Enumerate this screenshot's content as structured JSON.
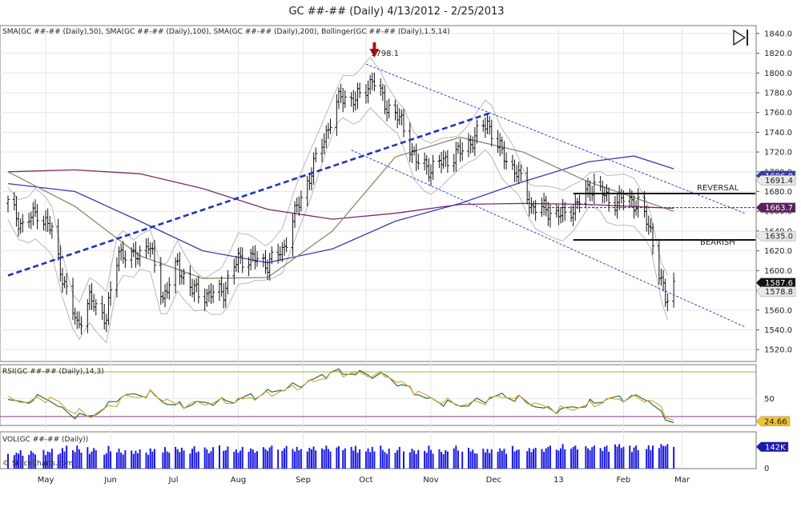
{
  "title": "GC ##-## (Daily)  4/13/2012 - 2/25/2013",
  "watermark": "© StockCharts.com",
  "chart_data": [
    {
      "type": "ohlc",
      "panel": "price",
      "legend_text": "SMA(GC ##-## (Daily),50), SMA(GC ##-## (Daily),100), SMA(GC ##-## (Daily),200), Bollinger(GC ##-## (Daily),1.5,14)",
      "x_months": [
        "May",
        "Jun",
        "Jul",
        "Aug",
        "Sep",
        "Oct",
        "Nov",
        "Dec",
        "13",
        "Feb",
        "Mar"
      ],
      "y_ticks": [
        1520,
        1540,
        1560,
        1580,
        1600,
        1620,
        1640,
        1660,
        1680,
        1700,
        1720,
        1740,
        1760,
        1780,
        1800,
        1820,
        1840
      ],
      "ylim": [
        1508,
        1848
      ],
      "price_path": [
        [
          "2012-04-13",
          1668
        ],
        [
          "2012-04-20",
          1645
        ],
        [
          "2012-04-27",
          1660
        ],
        [
          "2012-05-04",
          1640
        ],
        [
          "2012-05-10",
          1585
        ],
        [
          "2012-05-16",
          1545
        ],
        [
          "2012-05-22",
          1570
        ],
        [
          "2012-05-30",
          1553
        ],
        [
          "2012-06-05",
          1620
        ],
        [
          "2012-06-12",
          1612
        ],
        [
          "2012-06-19",
          1628
        ],
        [
          "2012-06-26",
          1573
        ],
        [
          "2012-07-03",
          1605
        ],
        [
          "2012-07-10",
          1580
        ],
        [
          "2012-07-18",
          1575
        ],
        [
          "2012-07-25",
          1580
        ],
        [
          "2012-08-01",
          1612
        ],
        [
          "2012-08-08",
          1612
        ],
        [
          "2012-08-15",
          1607
        ],
        [
          "2012-08-22",
          1620
        ],
        [
          "2012-08-29",
          1663
        ],
        [
          "2012-09-05",
          1700
        ],
        [
          "2012-09-12",
          1740
        ],
        [
          "2012-09-19",
          1777
        ],
        [
          "2012-09-26",
          1772
        ],
        [
          "2012-10-04",
          1793
        ],
        [
          "2012-10-10",
          1770
        ],
        [
          "2012-10-18",
          1750
        ],
        [
          "2012-10-25",
          1710
        ],
        [
          "2012-11-01",
          1703
        ],
        [
          "2012-11-08",
          1712
        ],
        [
          "2012-11-15",
          1720
        ],
        [
          "2012-11-22",
          1735
        ],
        [
          "2012-11-28",
          1750
        ],
        [
          "2012-12-05",
          1718
        ],
        [
          "2012-12-12",
          1700
        ],
        [
          "2012-12-19",
          1665
        ],
        [
          "2012-12-28",
          1660
        ],
        [
          "2013-01-04",
          1655
        ],
        [
          "2013-01-11",
          1670
        ],
        [
          "2013-01-18",
          1688
        ],
        [
          "2013-01-25",
          1670
        ],
        [
          "2013-02-01",
          1672
        ],
        [
          "2013-02-08",
          1668
        ],
        [
          "2013-02-14",
          1640
        ],
        [
          "2013-02-18",
          1600
        ],
        [
          "2013-02-21",
          1568
        ],
        [
          "2013-02-25",
          1587
        ]
      ],
      "annotations": {
        "high_marker": {
          "label": "1798.1",
          "date": "2012-10-05",
          "value": 1798.1
        },
        "reversal": {
          "label": "REVERSAL",
          "value": 1678
        },
        "bearish": {
          "label": "BEARISH",
          "value": 1631
        },
        "support_line": {
          "start": [
            "2012-04-13",
            1595
          ],
          "end": [
            "2012-11-30",
            1760
          ]
        },
        "upper_channel": {
          "start": [
            "2012-10-01",
            1809
          ],
          "end": [
            "2013-03-31",
            1658
          ]
        },
        "lower_channel": {
          "start": [
            "2012-09-24",
            1722
          ],
          "end": [
            "2013-03-31",
            1543
          ]
        }
      },
      "sma50": [
        [
          "2012-04-13",
          1700
        ],
        [
          "2012-05-15",
          1665
        ],
        [
          "2012-06-15",
          1615
        ],
        [
          "2012-07-15",
          1592
        ],
        [
          "2012-08-15",
          1593
        ],
        [
          "2012-09-15",
          1640
        ],
        [
          "2012-10-15",
          1715
        ],
        [
          "2012-11-15",
          1735
        ],
        [
          "2012-12-15",
          1720
        ],
        [
          "2013-01-15",
          1690
        ],
        [
          "2013-02-25",
          1660
        ]
      ],
      "sma100": [
        [
          "2012-04-13",
          1688
        ],
        [
          "2012-05-15",
          1680
        ],
        [
          "2012-06-15",
          1650
        ],
        [
          "2012-07-15",
          1620
        ],
        [
          "2012-08-15",
          1608
        ],
        [
          "2012-09-15",
          1622
        ],
        [
          "2012-10-15",
          1650
        ],
        [
          "2012-11-15",
          1668
        ],
        [
          "2012-12-15",
          1690
        ],
        [
          "2013-01-15",
          1710
        ],
        [
          "2013-02-06",
          1716
        ],
        [
          "2013-02-25",
          1703
        ]
      ],
      "sma200": [
        [
          "2012-04-13",
          1700
        ],
        [
          "2012-05-15",
          1702
        ],
        [
          "2012-06-15",
          1698
        ],
        [
          "2012-07-15",
          1683
        ],
        [
          "2012-08-15",
          1662
        ],
        [
          "2012-09-15",
          1652
        ],
        [
          "2012-10-15",
          1658
        ],
        [
          "2012-11-15",
          1667
        ],
        [
          "2012-12-15",
          1668
        ],
        [
          "2013-01-15",
          1667
        ],
        [
          "2013-02-25",
          1663
        ]
      ],
      "value_tags": [
        {
          "label": "1696.0",
          "value": 1696,
          "color": "#3a3aa8"
        },
        {
          "label": "1691.4",
          "value": 1691.4,
          "color": "#e8e8e8"
        },
        {
          "label": "1663.7",
          "value": 1663.7,
          "color": "#5a1f5a"
        },
        {
          "label": "1635.0",
          "value": 1635,
          "color": "#e8e8e8"
        },
        {
          "label": "1587.6",
          "value": 1587.6,
          "color": "#111111"
        },
        {
          "label": "1578.8",
          "value": 1578.8,
          "color": "#e8e8e8"
        }
      ]
    },
    {
      "type": "line",
      "panel": "rsi",
      "legend_text": "RSI(GC ##-## (Daily),14,3)",
      "y_ticks": [
        50
      ],
      "ylim": [
        20,
        88
      ],
      "reference_lines": [
        80,
        30
      ],
      "series": [
        {
          "color": "#2f6f2f",
          "values": [
            [
              "2012-04-13",
              47
            ],
            [
              "2012-04-20",
              46
            ],
            [
              "2012-05-01",
              52
            ],
            [
              "2012-05-10",
              36
            ],
            [
              "2012-05-20",
              28
            ],
            [
              "2012-05-30",
              40
            ],
            [
              "2012-06-05",
              52
            ],
            [
              "2012-06-20",
              56
            ],
            [
              "2012-06-30",
              42
            ],
            [
              "2012-07-15",
              45
            ],
            [
              "2012-07-30",
              48
            ],
            [
              "2012-08-15",
              57
            ],
            [
              "2012-08-28",
              64
            ],
            [
              "2012-09-05",
              70
            ],
            [
              "2012-09-15",
              80
            ],
            [
              "2012-10-01",
              77
            ],
            [
              "2012-10-10",
              76
            ],
            [
              "2012-10-20",
              62
            ],
            [
              "2012-11-01",
              48
            ],
            [
              "2012-11-15",
              42
            ],
            [
              "2012-11-25",
              48
            ],
            [
              "2012-12-05",
              54
            ],
            [
              "2012-12-15",
              48
            ],
            [
              "2012-12-25",
              38
            ],
            [
              "2013-01-04",
              38
            ],
            [
              "2013-01-15",
              44
            ],
            [
              "2013-01-25",
              50
            ],
            [
              "2013-02-06",
              52
            ],
            [
              "2013-02-14",
              48
            ],
            [
              "2013-02-20",
              28
            ],
            [
              "2013-02-25",
              26
            ]
          ]
        },
        {
          "color": "#d4a84a",
          "values": [
            [
              "2012-04-13",
              48
            ],
            [
              "2012-04-22",
              47
            ],
            [
              "2012-05-03",
              51
            ],
            [
              "2012-05-12",
              38
            ],
            [
              "2012-05-22",
              30
            ],
            [
              "2012-06-01",
              41
            ],
            [
              "2012-06-07",
              51
            ],
            [
              "2012-06-22",
              55
            ],
            [
              "2012-07-02",
              43
            ],
            [
              "2012-07-17",
              45
            ],
            [
              "2012-08-01",
              48
            ],
            [
              "2012-08-17",
              56
            ],
            [
              "2012-08-30",
              63
            ],
            [
              "2012-09-07",
              70
            ],
            [
              "2012-09-17",
              79
            ],
            [
              "2012-10-03",
              77
            ],
            [
              "2012-10-12",
              75
            ],
            [
              "2012-10-22",
              61
            ],
            [
              "2012-11-03",
              48
            ],
            [
              "2012-11-17",
              43
            ],
            [
              "2012-11-27",
              48
            ],
            [
              "2012-12-07",
              53
            ],
            [
              "2012-12-17",
              47
            ],
            [
              "2012-12-27",
              39
            ],
            [
              "2013-01-06",
              38
            ],
            [
              "2013-01-17",
              44
            ],
            [
              "2013-01-27",
              49
            ],
            [
              "2013-02-08",
              51
            ],
            [
              "2013-02-16",
              46
            ],
            [
              "2013-02-22",
              30
            ],
            [
              "2013-02-25",
              27
            ]
          ]
        }
      ],
      "value_tag": {
        "label": "24.66",
        "value": 24.66,
        "color": "#f1c232"
      }
    },
    {
      "type": "bar",
      "panel": "volume",
      "legend_text": "VOL(GC ##-## (Daily))",
      "y_ticks": [
        0
      ],
      "ylim": [
        0,
        240000
      ],
      "value_tag": {
        "label": "142K",
        "value": 142000,
        "color": "#1a1aa8"
      },
      "values": [
        96000,
        88000,
        104000,
        98000,
        120000,
        84000,
        90000,
        116000,
        104000,
        92000,
        122000,
        88000,
        112000,
        106000,
        130000,
        92000,
        100000,
        134000,
        112000,
        150000,
        120000,
        108000,
        150000,
        126000,
        104000,
        140000,
        96000,
        112000,
        134000,
        120000,
        90000,
        100000,
        148000,
        112000,
        106000,
        130000,
        104000,
        92000,
        120000,
        118000,
        96000,
        116000,
        100000,
        126000,
        104000,
        90000,
        132000,
        112000,
        128000,
        106000,
        140000,
        112000,
        104000,
        142000,
        126000,
        108000,
        136000,
        118000,
        98000,
        130000,
        146000,
        106000,
        112000,
        138000,
        126000,
        100000,
        114000,
        140000,
        152000,
        116000,
        120000,
        144000,
        110000,
        126000,
        104000,
        118000,
        142000,
        110000,
        132000,
        124000,
        104000,
        114000,
        140000,
        128000,
        116000,
        138000,
        150000,
        124000,
        116000,
        132000,
        148000,
        128000,
        112000,
        142000,
        120000,
        128000,
        112000,
        136000,
        126000,
        144000,
        118000,
        132000,
        124000,
        150000,
        128000,
        112000,
        138000,
        146000,
        120000,
        132000,
        142000,
        118000,
        148000,
        104000,
        126000,
        112000,
        132000,
        108000,
        142000,
        112000,
        150000,
        122000,
        108000,
        96000,
        130000,
        104000,
        120000,
        142000,
        112000,
        106000,
        130000,
        118000,
        96000,
        122000,
        116000,
        104000,
        150000,
        122000,
        98000,
        126000,
        110000,
        94000,
        120000,
        112000,
        132000,
        150000,
        118000,
        110000,
        136000,
        112000,
        124000,
        100000,
        98000,
        130000,
        106000,
        128000,
        102000,
        126000,
        110000,
        132000,
        116000,
        130000,
        96000,
        148000,
        112000,
        122000,
        124000,
        114000,
        134000,
        108000,
        128000,
        136000,
        128000,
        110000,
        132000,
        142000,
        150000,
        124000,
        118000,
        132000,
        160000,
        126000,
        130000,
        142000,
        150000,
        126000,
        146000,
        132000,
        120000,
        140000,
        150000,
        134000,
        116000,
        142000,
        150000,
        110000,
        158000,
        144000,
        160000,
        134000,
        142000,
        150000,
        108000,
        138000,
        150000,
        120000,
        128000,
        152000,
        120000,
        150000,
        134000,
        160000,
        148000,
        146000,
        160000,
        142000
      ]
    }
  ]
}
